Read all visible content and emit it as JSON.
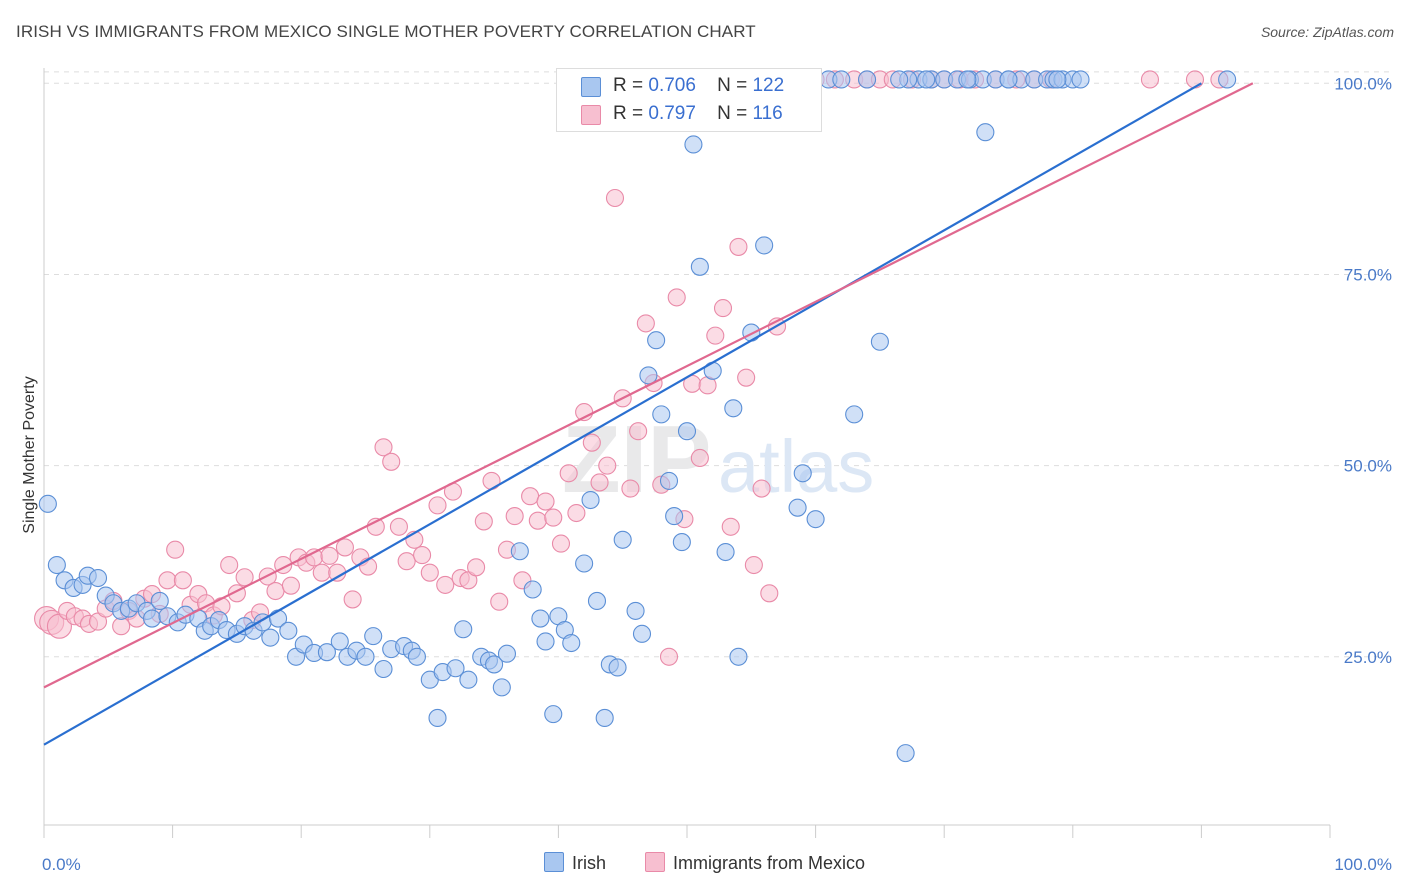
{
  "header": {
    "title": "IRISH VS IMMIGRANTS FROM MEXICO SINGLE MOTHER POVERTY CORRELATION CHART",
    "source": "Source: ZipAtlas.com"
  },
  "legend": {
    "rows": [
      {
        "r_label": "R =",
        "r_value": "0.706",
        "n_label": "N =",
        "n_value": "122"
      },
      {
        "r_label": "R =",
        "r_value": "0.797",
        "n_label": "N =",
        "n_value": "116"
      }
    ]
  },
  "bottom_legend": [
    "Irish",
    "Immigrants from Mexico"
  ],
  "watermark": {
    "zip": "ZIP",
    "atlas": "atlas"
  },
  "colors": {
    "irish_fill": "#a9c7f0",
    "irish_stroke": "#5b8fd6",
    "irish_line": "#2a6fd0",
    "mexico_fill": "#f7bfd0",
    "mexico_stroke": "#e98aa8",
    "mexico_line": "#e0688f",
    "tick_text": "#4a7ac8",
    "grid": "#dddddd"
  },
  "chart_data": {
    "type": "scatter",
    "ylabel": "Single Mother Poverty",
    "xlabel": "",
    "x_tick_labels": [
      "0.0%",
      "100.0%"
    ],
    "y_tick_labels": [
      "25.0%",
      "50.0%",
      "75.0%",
      "100.0%"
    ],
    "xlim": [
      0,
      100
    ],
    "ylim": [
      3,
      102
    ],
    "grid": true,
    "legend_position": "top-center",
    "series": [
      {
        "name": "Irish",
        "r": 0.706,
        "n": 122,
        "trend": [
          [
            0,
            13.5
          ],
          [
            90,
            100
          ]
        ],
        "points": [
          [
            0.3,
            45
          ],
          [
            1,
            37
          ],
          [
            1.6,
            35
          ],
          [
            2.3,
            34
          ],
          [
            3,
            34.4
          ],
          [
            3.4,
            35.6
          ],
          [
            4.2,
            35.3
          ],
          [
            4.8,
            33
          ],
          [
            5.4,
            32
          ],
          [
            6,
            31
          ],
          [
            6.6,
            31.3
          ],
          [
            7.2,
            32
          ],
          [
            8,
            31
          ],
          [
            8.4,
            30
          ],
          [
            9,
            32.3
          ],
          [
            9.6,
            30.3
          ],
          [
            10.4,
            29.5
          ],
          [
            11,
            30.5
          ],
          [
            12,
            30
          ],
          [
            12.5,
            28.4
          ],
          [
            13,
            29
          ],
          [
            13.6,
            29.8
          ],
          [
            14.2,
            28.5
          ],
          [
            15,
            28
          ],
          [
            15.6,
            29
          ],
          [
            16.3,
            28.4
          ],
          [
            17,
            29.5
          ],
          [
            17.6,
            27.5
          ],
          [
            18.2,
            30
          ],
          [
            19,
            28.4
          ],
          [
            19.6,
            25
          ],
          [
            20.2,
            26.6
          ],
          [
            21,
            25.5
          ],
          [
            22,
            25.6
          ],
          [
            23,
            27
          ],
          [
            23.6,
            25
          ],
          [
            24.3,
            25.8
          ],
          [
            25,
            25
          ],
          [
            25.6,
            27.7
          ],
          [
            26.4,
            23.4
          ],
          [
            27,
            26
          ],
          [
            28,
            26.4
          ],
          [
            28.6,
            25.8
          ],
          [
            29,
            25
          ],
          [
            30,
            22
          ],
          [
            30.6,
            17
          ],
          [
            31,
            23
          ],
          [
            32,
            23.5
          ],
          [
            32.6,
            28.6
          ],
          [
            33,
            22
          ],
          [
            34,
            25
          ],
          [
            34.6,
            24.5
          ],
          [
            35,
            24
          ],
          [
            35.6,
            21
          ],
          [
            36,
            25.4
          ],
          [
            37,
            38.8
          ],
          [
            38,
            33.8
          ],
          [
            38.6,
            30
          ],
          [
            39,
            27
          ],
          [
            39.6,
            17.5
          ],
          [
            40,
            30.3
          ],
          [
            40.5,
            28.5
          ],
          [
            41,
            26.8
          ],
          [
            42,
            37.2
          ],
          [
            42.5,
            45.5
          ],
          [
            43,
            32.3
          ],
          [
            43.6,
            17
          ],
          [
            44,
            24
          ],
          [
            44.6,
            23.6
          ],
          [
            45,
            40.3
          ],
          [
            46,
            31
          ],
          [
            46.5,
            28
          ],
          [
            47,
            61.8
          ],
          [
            47.6,
            66.4
          ],
          [
            48,
            56.7
          ],
          [
            48.6,
            48
          ],
          [
            49,
            43.4
          ],
          [
            49.6,
            40
          ],
          [
            50,
            54.5
          ],
          [
            50.5,
            92
          ],
          [
            51,
            76
          ],
          [
            52,
            62.4
          ],
          [
            53,
            38.7
          ],
          [
            53.6,
            57.5
          ],
          [
            54,
            25
          ],
          [
            55,
            67.4
          ],
          [
            56,
            78.8
          ],
          [
            57,
            100.5
          ],
          [
            57.6,
            100.5
          ],
          [
            58,
            100.5
          ],
          [
            58.6,
            44.5
          ],
          [
            59,
            49
          ],
          [
            60,
            43
          ],
          [
            61,
            100.5
          ],
          [
            62,
            100.5
          ],
          [
            63,
            56.7
          ],
          [
            64,
            100.5
          ],
          [
            65,
            66.2
          ],
          [
            67,
            12.4
          ],
          [
            68,
            100.5
          ],
          [
            69,
            100.5
          ],
          [
            70,
            100.5
          ],
          [
            71,
            100.5
          ],
          [
            72,
            100.5
          ],
          [
            73,
            100.5
          ],
          [
            74,
            100.5
          ],
          [
            75,
            100.5
          ],
          [
            76,
            100.5
          ],
          [
            77,
            100.5
          ],
          [
            78,
            100.5
          ],
          [
            67.2,
            100.5
          ],
          [
            66.5,
            100.5
          ],
          [
            68.6,
            100.5
          ],
          [
            71.8,
            100.5
          ],
          [
            73.2,
            93.6
          ],
          [
            75,
            100.5
          ],
          [
            78.5,
            100.5
          ],
          [
            79.2,
            100.5
          ],
          [
            80,
            100.5
          ],
          [
            80.6,
            100.5
          ],
          [
            92,
            100.5
          ],
          [
            78.8,
            100.5
          ]
        ]
      },
      {
        "name": "Immigrants from Mexico",
        "r": 0.797,
        "n": 116,
        "trend": [
          [
            0,
            21
          ],
          [
            94,
            100
          ]
        ],
        "points": [
          [
            0.2,
            30
          ],
          [
            0.6,
            29.5
          ],
          [
            1.2,
            29
          ],
          [
            1.8,
            31
          ],
          [
            2.4,
            30.3
          ],
          [
            3,
            30
          ],
          [
            3.5,
            29.3
          ],
          [
            4.2,
            29.6
          ],
          [
            4.8,
            31.3
          ],
          [
            5.4,
            32.3
          ],
          [
            6,
            29
          ],
          [
            6.6,
            31
          ],
          [
            7.2,
            30
          ],
          [
            7.8,
            32.6
          ],
          [
            8.4,
            33.2
          ],
          [
            9,
            30.6
          ],
          [
            9.6,
            35
          ],
          [
            10.2,
            39
          ],
          [
            10.8,
            35
          ],
          [
            11.4,
            31.8
          ],
          [
            12,
            33.2
          ],
          [
            12.6,
            32
          ],
          [
            13.2,
            30.4
          ],
          [
            13.8,
            31.6
          ],
          [
            14.4,
            37
          ],
          [
            15,
            33.3
          ],
          [
            15.6,
            35.4
          ],
          [
            16.2,
            29.8
          ],
          [
            16.8,
            30.8
          ],
          [
            17.4,
            35.5
          ],
          [
            18,
            33.6
          ],
          [
            18.6,
            37
          ],
          [
            19.2,
            34.3
          ],
          [
            19.8,
            38
          ],
          [
            20.4,
            37.3
          ],
          [
            21,
            38
          ],
          [
            21.6,
            36
          ],
          [
            22.2,
            38.2
          ],
          [
            22.8,
            36
          ],
          [
            23.4,
            39.3
          ],
          [
            24,
            32.5
          ],
          [
            24.6,
            38
          ],
          [
            25.2,
            36.8
          ],
          [
            25.8,
            42
          ],
          [
            26.4,
            52.4
          ],
          [
            27,
            50.5
          ],
          [
            27.6,
            42
          ],
          [
            28.2,
            37.5
          ],
          [
            28.8,
            40.3
          ],
          [
            29.4,
            38.3
          ],
          [
            30,
            36
          ],
          [
            30.6,
            44.8
          ],
          [
            31.2,
            34.4
          ],
          [
            31.8,
            46.6
          ],
          [
            32.4,
            35.3
          ],
          [
            33,
            35
          ],
          [
            33.6,
            36.7
          ],
          [
            34.2,
            42.7
          ],
          [
            34.8,
            48
          ],
          [
            35.4,
            32.2
          ],
          [
            36,
            39
          ],
          [
            36.6,
            43.4
          ],
          [
            37.2,
            35
          ],
          [
            37.8,
            46
          ],
          [
            38.4,
            42.8
          ],
          [
            39,
            45.3
          ],
          [
            39.6,
            43.2
          ],
          [
            40.2,
            39.8
          ],
          [
            40.8,
            49
          ],
          [
            41.4,
            43.8
          ],
          [
            42,
            57
          ],
          [
            42.6,
            53
          ],
          [
            43.2,
            47.8
          ],
          [
            43.8,
            50
          ],
          [
            44.4,
            85
          ],
          [
            45,
            58.8
          ],
          [
            45.6,
            47
          ],
          [
            46.2,
            54.5
          ],
          [
            46.8,
            68.6
          ],
          [
            47.4,
            60.8
          ],
          [
            48,
            47.5
          ],
          [
            48.6,
            25
          ],
          [
            49.2,
            72
          ],
          [
            49.8,
            43
          ],
          [
            50.4,
            60.7
          ],
          [
            51,
            51
          ],
          [
            51.6,
            60.5
          ],
          [
            52.2,
            67
          ],
          [
            52.8,
            70.6
          ],
          [
            53.4,
            42
          ],
          [
            54,
            78.6
          ],
          [
            54.6,
            61.5
          ],
          [
            55.2,
            37
          ],
          [
            55.8,
            47
          ],
          [
            56.4,
            33.3
          ],
          [
            57,
            68.2
          ],
          [
            58,
            100.5
          ],
          [
            60,
            100.5
          ],
          [
            61.5,
            100.5
          ],
          [
            63,
            100.5
          ],
          [
            64,
            100.5
          ],
          [
            65,
            100.5
          ],
          [
            66,
            100.5
          ],
          [
            67.5,
            100.5
          ],
          [
            69,
            100.5
          ],
          [
            70,
            100.5
          ],
          [
            71.2,
            100.5
          ],
          [
            72.4,
            100.5
          ],
          [
            74,
            100.5
          ],
          [
            75.6,
            100.5
          ],
          [
            77,
            100.5
          ],
          [
            78.3,
            100.5
          ],
          [
            86,
            100.5
          ],
          [
            89.5,
            100.5
          ],
          [
            91.4,
            100.5
          ],
          [
            55,
            100.5
          ]
        ]
      }
    ]
  }
}
